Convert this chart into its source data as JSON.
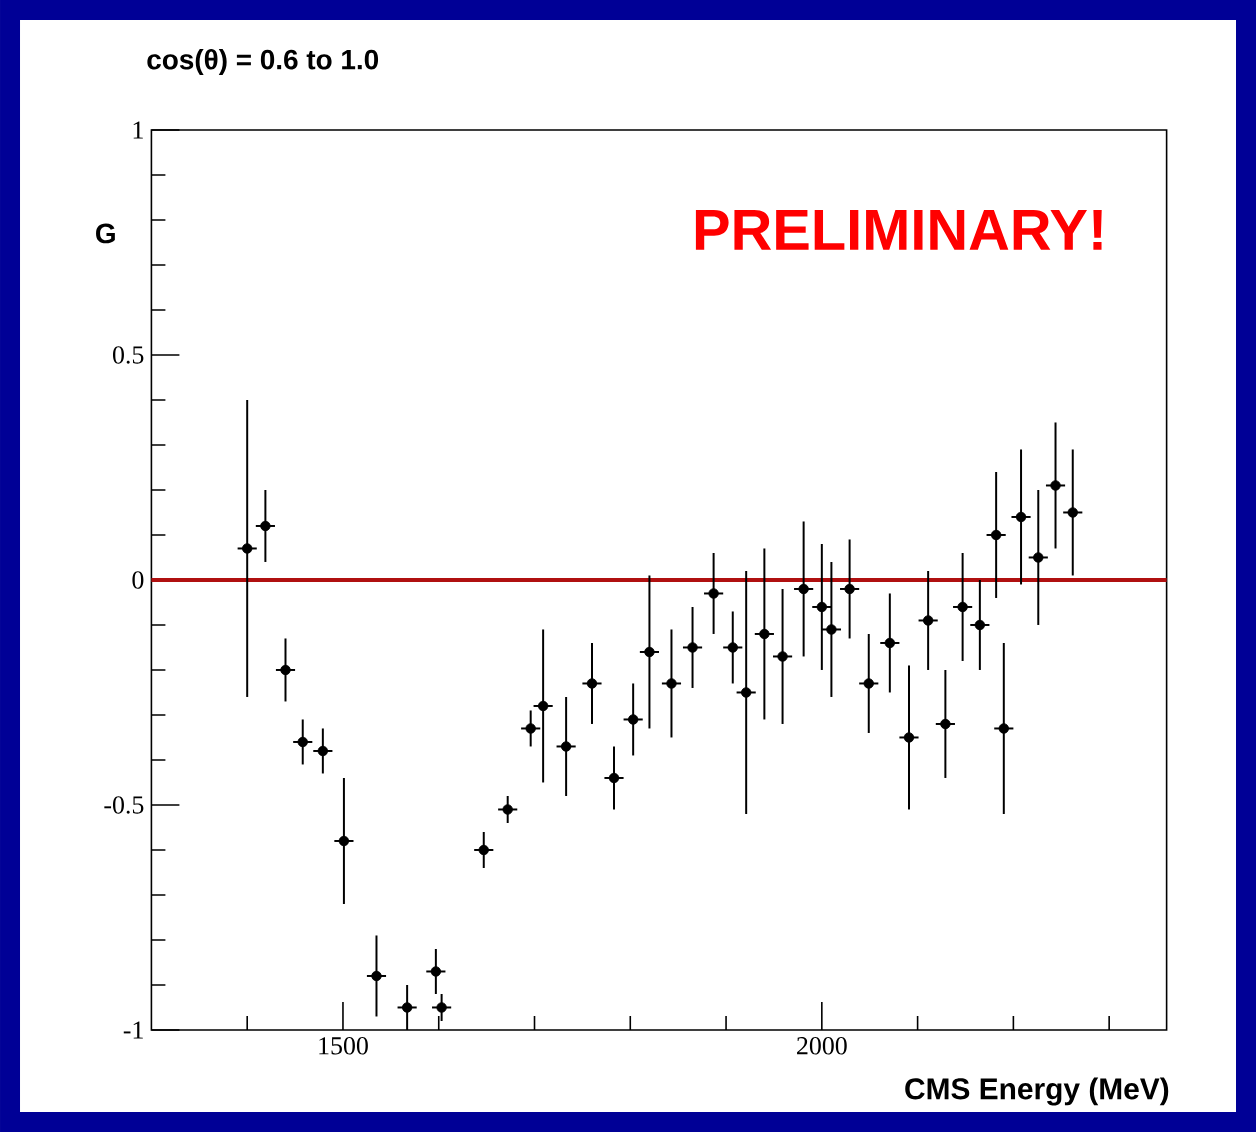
{
  "chart_data": {
    "type": "scatter",
    "title": "cos(θ) = 0.6 to 1.0",
    "xlabel": "CMS Energy (MeV)",
    "ylabel": "G",
    "annotations": [
      "PRELIMINARY!"
    ],
    "x": [
      1400,
      1419,
      1440,
      1458,
      1479,
      1501,
      1535,
      1567,
      1597,
      1603,
      1647,
      1672,
      1696,
      1709,
      1733,
      1760,
      1783,
      1803,
      1820,
      1843,
      1865,
      1887,
      1907,
      1921,
      1940,
      1959,
      1981,
      2000,
      2010,
      2029,
      2049,
      2071,
      2091,
      2111,
      2129,
      2147,
      2165,
      2182,
      2190,
      2208,
      2226,
      2244,
      2262
    ],
    "values": [
      0.07,
      0.12,
      -0.2,
      -0.36,
      -0.38,
      -0.58,
      -0.88,
      -0.95,
      -0.87,
      -0.95,
      -0.6,
      -0.51,
      -0.33,
      -0.28,
      -0.37,
      -0.23,
      -0.44,
      -0.31,
      -0.16,
      -0.23,
      -0.15,
      -0.03,
      -0.15,
      -0.25,
      -0.12,
      -0.17,
      -0.02,
      -0.06,
      -0.11,
      -0.02,
      -0.23,
      -0.14,
      -0.35,
      -0.09,
      -0.32,
      -0.06,
      -0.1,
      0.1,
      -0.33,
      0.14,
      0.05,
      0.21,
      0.15
    ],
    "errors": [
      0.33,
      0.08,
      0.07,
      0.05,
      0.05,
      0.14,
      0.09,
      0.05,
      0.05,
      0.03,
      0.04,
      0.03,
      0.04,
      0.17,
      0.11,
      0.09,
      0.07,
      0.08,
      0.17,
      0.12,
      0.09,
      0.09,
      0.08,
      0.27,
      0.19,
      0.15,
      0.15,
      0.14,
      0.15,
      0.11,
      0.11,
      0.11,
      0.16,
      0.11,
      0.12,
      0.12,
      0.1,
      0.14,
      0.19,
      0.15,
      0.15,
      0.14,
      0.14
    ],
    "xerrors": [
      10,
      10,
      10,
      10,
      10,
      10,
      10,
      10,
      10,
      10,
      10,
      10,
      10,
      10,
      10,
      10,
      10,
      10,
      10,
      10,
      10,
      10,
      10,
      10,
      10,
      10,
      10,
      10,
      10,
      10,
      10,
      10,
      10,
      10,
      10,
      10,
      10,
      10,
      10,
      10,
      10,
      10,
      10
    ],
    "color": "#000000",
    "marker": "circle",
    "xlim": [
      1300,
      2360
    ],
    "xticks": [
      {
        "value": 1400,
        "label": null
      },
      1500,
      {
        "value": 1600,
        "label": null
      },
      {
        "value": 1700,
        "label": null
      },
      {
        "value": 1800,
        "label": null
      },
      {
        "value": 1900,
        "label": null
      },
      2000,
      {
        "value": 2100,
        "label": null
      },
      {
        "value": 2200,
        "label": null
      },
      {
        "value": 2300,
        "label": null
      }
    ],
    "ylim": [
      -1,
      1
    ],
    "yticks": [
      -1,
      {
        "value": -0.9,
        "label": null
      },
      {
        "value": -0.8,
        "label": null
      },
      {
        "value": -0.7,
        "label": null
      },
      {
        "value": -0.6,
        "label": null
      },
      -0.5,
      {
        "value": -0.4,
        "label": null
      },
      {
        "value": -0.3,
        "label": null
      },
      {
        "value": -0.2,
        "label": null
      },
      {
        "value": -0.1,
        "label": null
      },
      0,
      {
        "value": 0.1,
        "label": null
      },
      {
        "value": 0.2,
        "label": null
      },
      {
        "value": 0.3,
        "label": null
      },
      {
        "value": 0.4,
        "label": null
      },
      0.5,
      {
        "value": 0.6,
        "label": null
      },
      {
        "value": 0.7,
        "label": null
      },
      {
        "value": 0.8,
        "label": null
      },
      {
        "value": 0.9,
        "label": null
      },
      1
    ],
    "ref_lines": [
      {
        "axis": "y",
        "value": 0,
        "color": "#b01010"
      }
    ]
  }
}
